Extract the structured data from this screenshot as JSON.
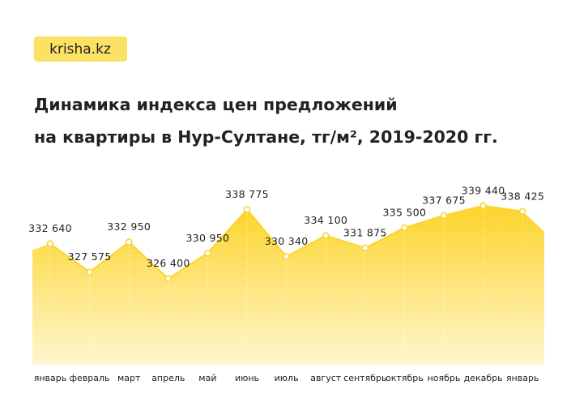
{
  "logo": "krisha.kz",
  "chart_data": {
    "type": "area",
    "title": [
      "Динамика индекса цен предложений",
      "на квартиры в Нур-Султане, тг/м², 2019-2020 гг."
    ],
    "categories": [
      "январь",
      "февраль",
      "март",
      "апрель",
      "май",
      "июнь",
      "июль",
      "август",
      "сентябрь",
      "октябрь",
      "ноябрь",
      "декабрь",
      "январь"
    ],
    "values": [
      332640,
      327575,
      332950,
      326400,
      330950,
      338775,
      330340,
      334100,
      331875,
      335500,
      337675,
      339440,
      338425
    ],
    "value_labels": [
      "332 640",
      "327 575",
      "332 950",
      "326 400",
      "330 950",
      "338 775",
      "330 340",
      "334 100",
      "331 875",
      "335 500",
      "337 675",
      "339 440",
      "338 425"
    ],
    "color": "#fcd42a",
    "ylim": [
      311000,
      346000
    ]
  }
}
